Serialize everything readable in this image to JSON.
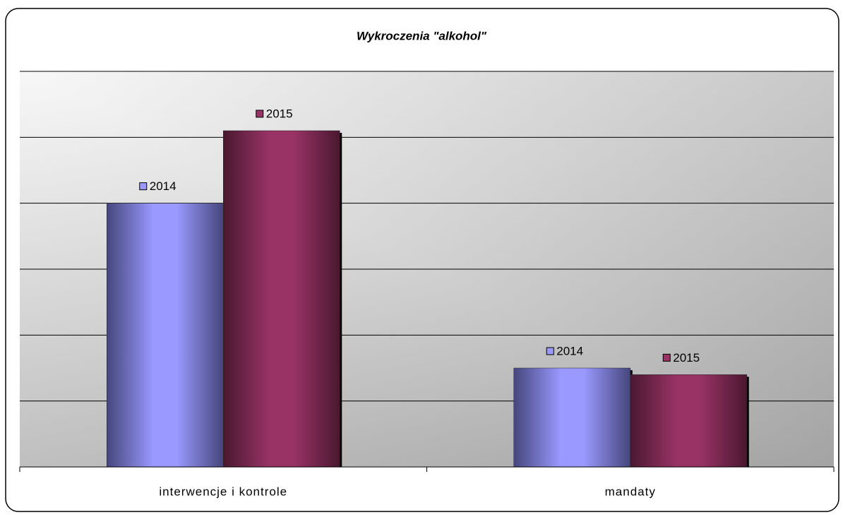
{
  "chart_data": {
    "type": "bar",
    "title": "Wykroczenia \"alkohol\"",
    "categories": [
      "interwencje i kontrole",
      "mandaty"
    ],
    "series": [
      {
        "name": "2014",
        "color": "#9999ff",
        "values": [
          4.0,
          1.5
        ]
      },
      {
        "name": "2015",
        "color": "#993366",
        "values": [
          5.1,
          1.4
        ]
      }
    ],
    "ylim": [
      0,
      6
    ],
    "yticks": [
      0,
      1,
      2,
      3,
      4,
      5,
      6
    ],
    "grid": true
  }
}
